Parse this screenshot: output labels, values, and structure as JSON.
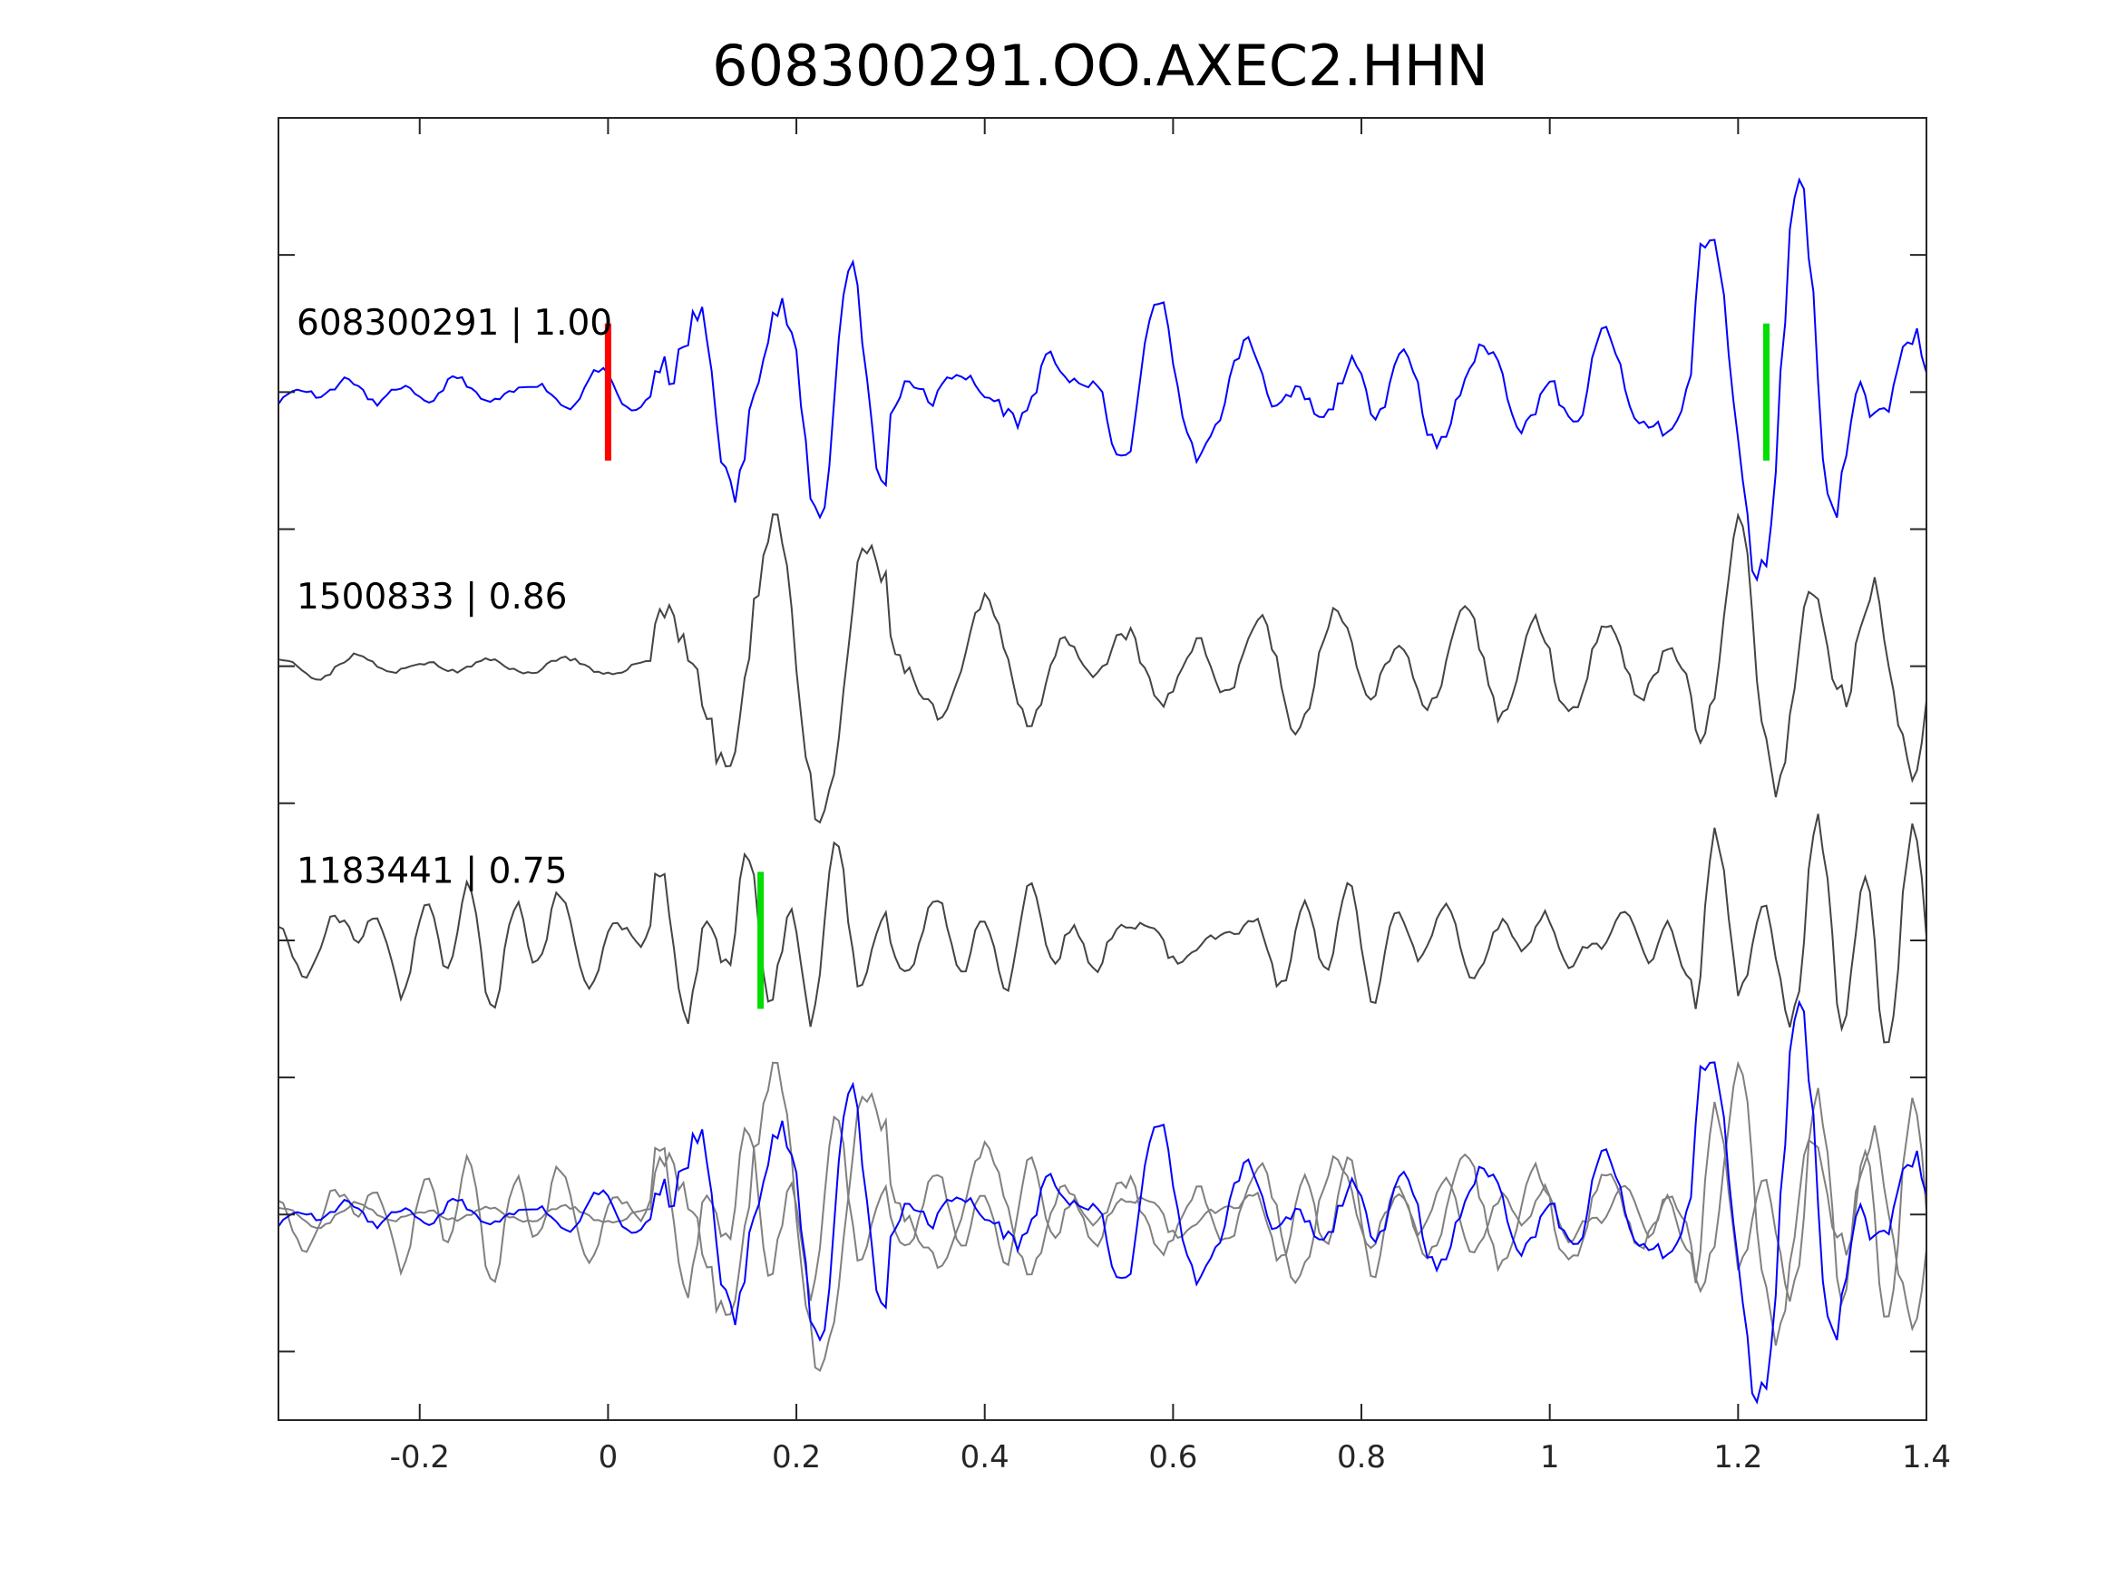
{
  "chart_data": {
    "type": "line",
    "title": "608300291.OO.AXEC2.HHN",
    "xlabel": "",
    "ylabel": "",
    "xlim": [
      -0.35,
      1.4
    ],
    "ylim": [
      -7.5,
      2
    ],
    "xticks": [
      -0.2,
      0,
      0.2,
      0.4,
      0.6,
      0.8,
      1,
      1.2,
      1.4
    ],
    "xtick_labels": [
      "-0.2",
      "0",
      "0.2",
      "0.4",
      "0.6",
      "0.8",
      "1",
      "1.2",
      "1.4"
    ],
    "yticks": [
      1,
      0,
      -1,
      -2,
      -3,
      -4,
      -5,
      -6,
      -7
    ],
    "grid": false,
    "sample_interval": 0.005,
    "series": [
      {
        "name": "608300291",
        "correlation": "1.00",
        "label": "608300291 | 1.00",
        "offset": 0,
        "color": "#0000ff",
        "seed": 11,
        "freq": 14,
        "pre_amp": 0.16,
        "peak_amp": 0.95,
        "picks": [
          {
            "time": 0,
            "color": "#ff0000"
          },
          {
            "time": 1.23,
            "color": "#00dd00"
          }
        ]
      },
      {
        "name": "1500833",
        "correlation": "0.86",
        "label": "1500833 | 0.86",
        "offset": -2,
        "color": "#444444",
        "seed": 23,
        "freq": 13,
        "pre_amp": 0.12,
        "peak_amp": 1.0,
        "picks": []
      },
      {
        "name": "1183441",
        "correlation": "0.75",
        "label": "1183441 | 0.75",
        "offset": -4,
        "color": "#444444",
        "seed": 37,
        "freq": 16,
        "pre_amp": 0.35,
        "peak_amp": 0.6,
        "picks": [
          {
            "time": 0.162,
            "color": "#00dd00"
          }
        ]
      }
    ],
    "overlay": {
      "offset": -6,
      "primary_color": "#0000ff",
      "secondary_color": "#808080"
    }
  }
}
